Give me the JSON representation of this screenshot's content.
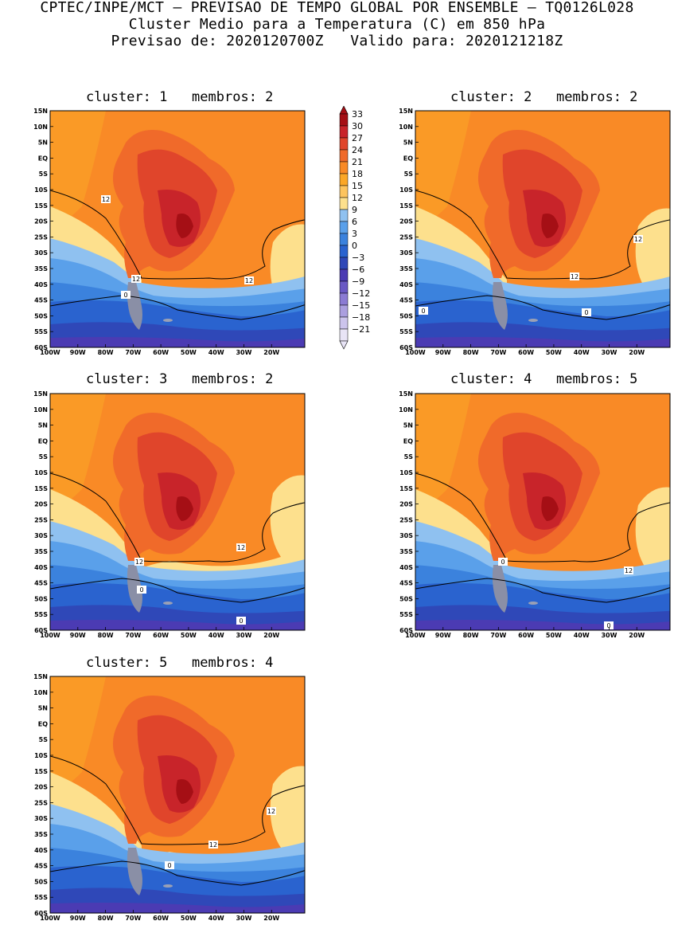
{
  "header": {
    "line1": "CPTEC/INPE/MCT – PREVISAO DE TEMPO GLOBAL POR ENSEMBLE – TQ0126L028",
    "line2": "Cluster Medio para a Temperatura (C) em 850 hPa",
    "line3": "Previsao de: 2020120700Z   Valido para: 2020121218Z"
  },
  "axes": {
    "lat_ticks": [
      "15N",
      "10N",
      "5N",
      "EQ",
      "5S",
      "10S",
      "15S",
      "20S",
      "25S",
      "30S",
      "35S",
      "40S",
      "45S",
      "50S",
      "55S",
      "60S"
    ],
    "lon_ticks": [
      "100W",
      "90W",
      "80W",
      "70W",
      "60W",
      "50W",
      "40W",
      "30W",
      "20W"
    ]
  },
  "colorbar": {
    "labels": [
      "33",
      "30",
      "27",
      "24",
      "21",
      "18",
      "15",
      "12",
      "9",
      "6",
      "3",
      "0",
      "-3",
      "-6",
      "-9",
      "-12",
      "-15",
      "-18",
      "-21"
    ],
    "colors": [
      "#a50f15",
      "#c8242a",
      "#e0452b",
      "#f06a2a",
      "#f98a26",
      "#fba727",
      "#fdc45e",
      "#fde08d",
      "#8fc1f0",
      "#5aa0ea",
      "#3b82dd",
      "#2a63cf",
      "#2f48b8",
      "#4b3bb3",
      "#6a59c4",
      "#8b7bd3",
      "#ab9fdf",
      "#ccc4ec",
      "#e8e4f6"
    ]
  },
  "clusters": [
    {
      "title": "cluster: 1   membros: 2",
      "contour_labels": [
        "12",
        "12",
        "12",
        "0"
      ]
    },
    {
      "title": "cluster: 2   membros: 2",
      "contour_labels": [
        "12",
        "12",
        "0",
        "0"
      ]
    },
    {
      "title": "cluster: 3   membros: 2",
      "contour_labels": [
        "12",
        "12",
        "0",
        "0"
      ]
    },
    {
      "title": "cluster: 4   membros: 5",
      "contour_labels": [
        "12",
        "0",
        "0"
      ]
    },
    {
      "title": "cluster: 5   membros: 4",
      "contour_labels": [
        "12",
        "12",
        "0"
      ]
    }
  ]
}
